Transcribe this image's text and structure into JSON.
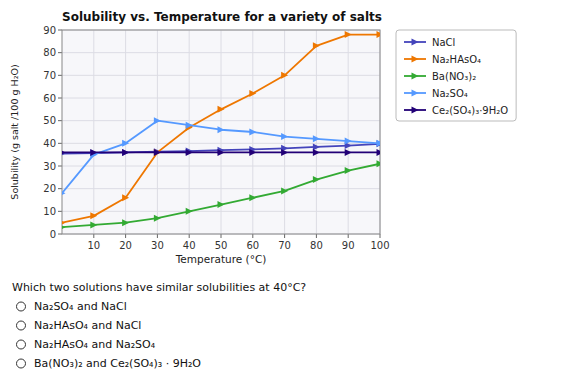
{
  "chart_data": {
    "type": "line",
    "title": "Solubility vs. Temperature for a variety of salts",
    "x_label": "Temperature (°C)",
    "y_label": "Solubility (g salt /100 g H₂O)",
    "x": [
      0,
      10,
      20,
      30,
      40,
      50,
      60,
      70,
      80,
      90,
      100
    ],
    "series": [
      {
        "name": "NaCl",
        "color": "#4444bb",
        "marker": "triangle-right",
        "values": [
          35.5,
          35.7,
          36.0,
          36.3,
          36.6,
          37.0,
          37.3,
          37.8,
          38.4,
          39.0,
          39.8
        ]
      },
      {
        "name": "Na₂HAsO₄",
        "color": "#ee7700",
        "marker": "triangle-right",
        "values": [
          5,
          8,
          16,
          36,
          47,
          55,
          62,
          70,
          83,
          88,
          88
        ]
      },
      {
        "name": "Ba(NO₃)₂",
        "color": "#33aa33",
        "marker": "triangle-right",
        "values": [
          3,
          4,
          5,
          7,
          10,
          13,
          16,
          19,
          24,
          28,
          31
        ]
      },
      {
        "name": "Na₂SO₄",
        "color": "#5599ff",
        "marker": "triangle-right",
        "values": [
          18,
          35,
          40,
          50,
          48,
          46,
          45,
          43,
          42,
          41,
          40
        ]
      },
      {
        "name": "Ce₂(SO₄)₃·9H₂O",
        "color": "#220077",
        "marker": "triangle-right",
        "values": [
          36,
          36,
          36,
          36,
          36,
          36,
          36,
          36,
          36,
          36,
          36
        ]
      }
    ],
    "xlim": [
      0,
      100
    ],
    "ylim": [
      0,
      90
    ],
    "xticks": [
      10,
      20,
      30,
      40,
      50,
      60,
      70,
      80,
      90,
      100
    ],
    "yticks": [
      0,
      10,
      20,
      30,
      40,
      50,
      60,
      70,
      80,
      90
    ],
    "grid": true,
    "legend": "right",
    "annotations": [
      "Which two solutions have similar solubilities at 40°C?",
      "Na₂SO₄ and NaCl",
      "Na₂HAsO₄ and NaCl",
      "Na₂HAsO₄ and Na₂SO₄",
      "Ba(NO₃)₂ and Ce₂(SO₄)₃ · 9H₂O"
    ]
  }
}
